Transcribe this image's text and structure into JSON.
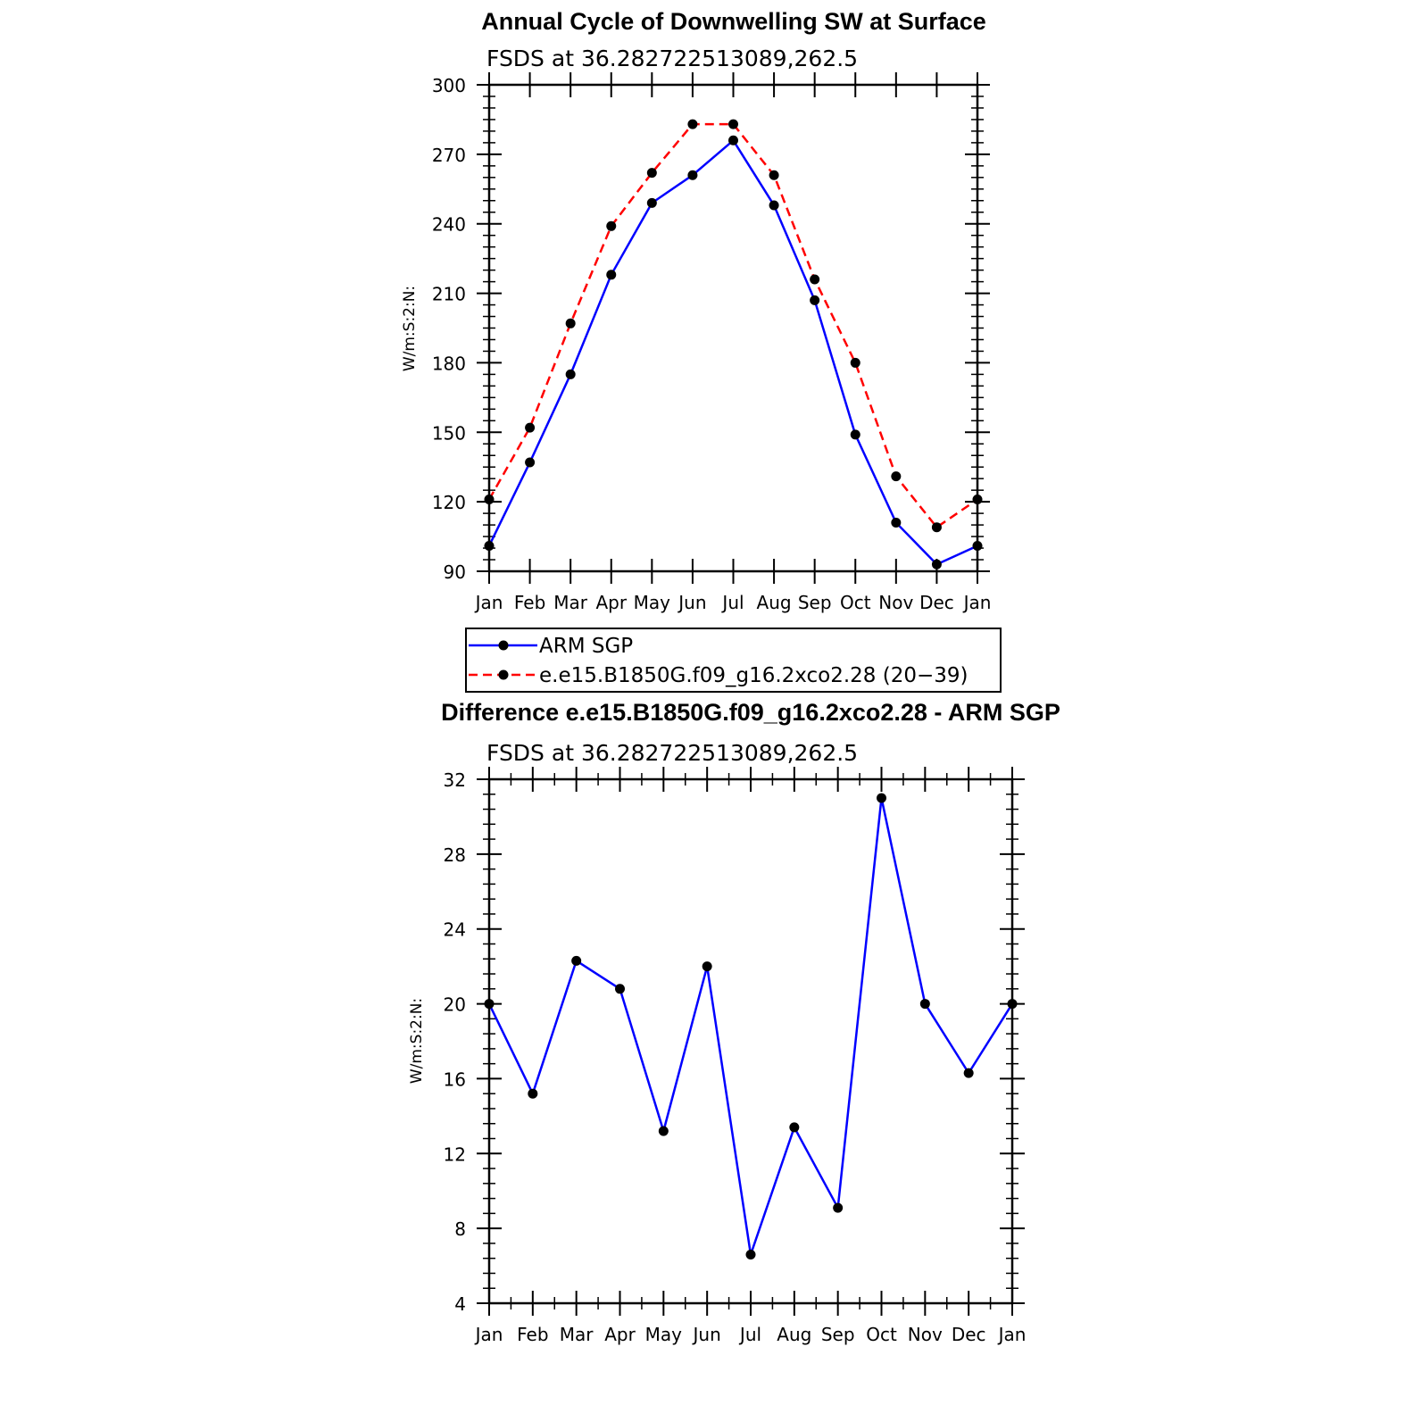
{
  "chart_data": [
    {
      "type": "line",
      "title": "Annual Cycle of Downwelling SW at Surface",
      "subtitle": "FSDS at 36.282722513089,262.5",
      "ylabel": "W/m:S:2:N:",
      "xlabel": "",
      "categories": [
        "Jan",
        "Feb",
        "Mar",
        "Apr",
        "May",
        "Jun",
        "Jul",
        "Aug",
        "Sep",
        "Oct",
        "Nov",
        "Dec",
        "Jan"
      ],
      "ylim": [
        90,
        300
      ],
      "yticks": [
        90,
        120,
        150,
        180,
        210,
        240,
        270,
        300
      ],
      "grid": false,
      "series": [
        {
          "name": "ARM SGP",
          "color": "#0000ff",
          "dash": "solid",
          "values": [
            101,
            137,
            175,
            218,
            249,
            261,
            276,
            248,
            207,
            149,
            111,
            93,
            101
          ]
        },
        {
          "name": "e.e15.B1850G.f09_g16.2xco2.28 (20−39)",
          "color": "#ff0000",
          "dash": "dashed",
          "values": [
            121,
            152,
            197,
            239,
            262,
            283,
            283,
            261,
            216,
            180,
            131,
            109,
            121
          ]
        }
      ],
      "legend_position": "bottom"
    },
    {
      "type": "line",
      "title": "Difference e.e15.B1850G.f09_g16.2xco2.28 - ARM SGP",
      "subtitle": "FSDS at 36.282722513089,262.5",
      "ylabel": "W/m:S:2:N:",
      "xlabel": "",
      "categories": [
        "Jan",
        "Feb",
        "Mar",
        "Apr",
        "May",
        "Jun",
        "Jul",
        "Aug",
        "Sep",
        "Oct",
        "Nov",
        "Dec",
        "Jan"
      ],
      "ylim": [
        4,
        32
      ],
      "yticks": [
        4,
        8,
        12,
        16,
        20,
        24,
        28,
        32
      ],
      "grid": false,
      "series": [
        {
          "color": "#0000ff",
          "dash": "solid",
          "values": [
            20,
            15.2,
            22.3,
            20.8,
            13.2,
            22,
            6.6,
            13.4,
            9.1,
            31,
            20,
            16.3,
            20
          ]
        }
      ]
    }
  ]
}
